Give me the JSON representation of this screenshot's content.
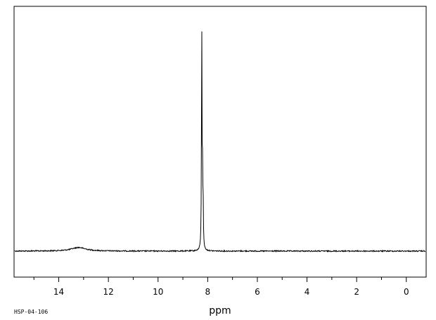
{
  "chart_data": {
    "type": "line",
    "title": "",
    "xlabel": "ppm",
    "ylabel": "",
    "xlim": [
      15.8,
      -0.8
    ],
    "x_reversed": true,
    "x_ticks": [
      14,
      12,
      10,
      8,
      6,
      4,
      2,
      0
    ],
    "x_tick_labels": [
      "14",
      "12",
      "10",
      "8",
      "6",
      "4",
      "2",
      "0"
    ],
    "grid": false,
    "series": [
      {
        "peaks": [
          {
            "ppm": 13.2,
            "height": 0.016,
            "width": 0.35,
            "shape": "broad"
          },
          {
            "ppm": 8.24,
            "height": 1.0,
            "width": 0.012,
            "shape": "sharp"
          },
          {
            "ppm": 8.21,
            "height": 0.3,
            "width": 0.012,
            "shape": "sharp"
          },
          {
            "ppm": 8.185,
            "height": 0.2,
            "width": 0.012,
            "shape": "sharp"
          }
        ]
      }
    ],
    "annotations": [
      "HSP-04-106"
    ],
    "line_color": "#000000"
  }
}
